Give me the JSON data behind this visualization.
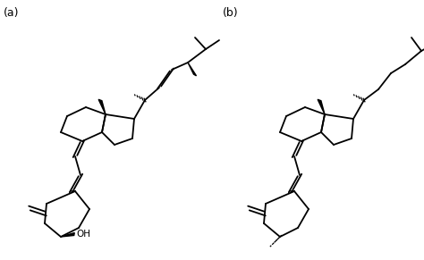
{
  "background": "#ffffff",
  "label_a": "(a)",
  "label_b": "(b)",
  "label_fontsize": 9,
  "line_color": "#000000",
  "lw": 1.3,
  "fig_width": 4.74,
  "fig_height": 2.91,
  "dpi": 100
}
